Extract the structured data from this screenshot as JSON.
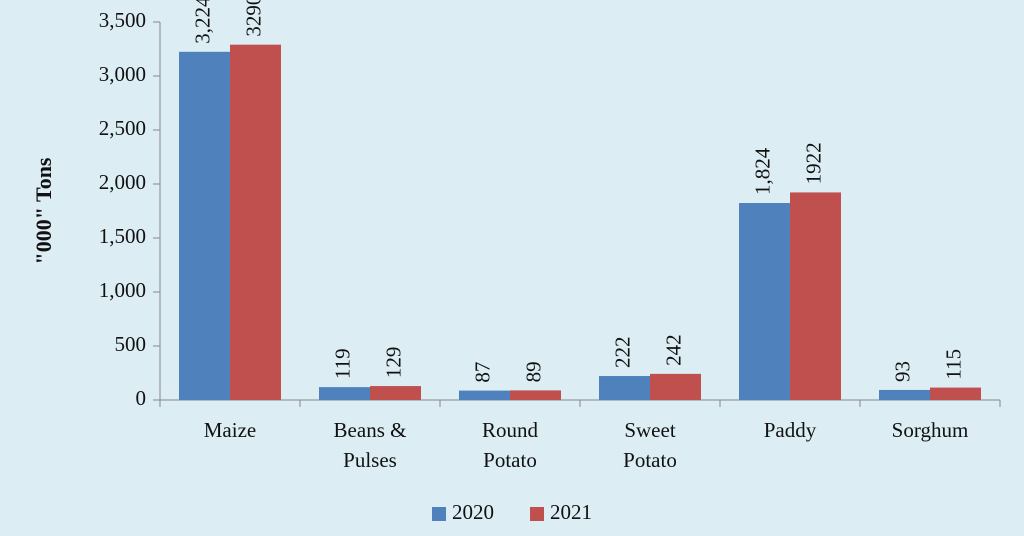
{
  "chart_data": {
    "type": "bar",
    "y_label": "\"000\" Tons",
    "categories": [
      "Maize",
      "Beans &\nPulses",
      "Round\nPotato",
      "Sweet\nPotato",
      "Paddy",
      "Sorghum"
    ],
    "series": [
      {
        "name": "2020",
        "color": "#4f81bd",
        "values": [
          3224,
          119,
          87,
          222,
          1824,
          93
        ],
        "value_labels": [
          "3,224",
          "119",
          "87",
          "222",
          "1,824",
          "93"
        ]
      },
      {
        "name": "2021",
        "color": "#c0504d",
        "values": [
          3290,
          129,
          89,
          242,
          1922,
          115
        ]
      }
    ],
    "ylim": [
      0,
      3500
    ],
    "yticks": [
      0,
      500,
      {
        "value": 1000,
        "label": "1,000"
      },
      {
        "value": 1500,
        "label": "1,500"
      },
      {
        "value": 2000,
        "label": "2,000"
      },
      {
        "value": 2500,
        "label": "2,500"
      },
      {
        "value": 3000,
        "label": "3,000"
      },
      {
        "value": 3500,
        "label": "3,500"
      }
    ],
    "legend": "bottom"
  }
}
